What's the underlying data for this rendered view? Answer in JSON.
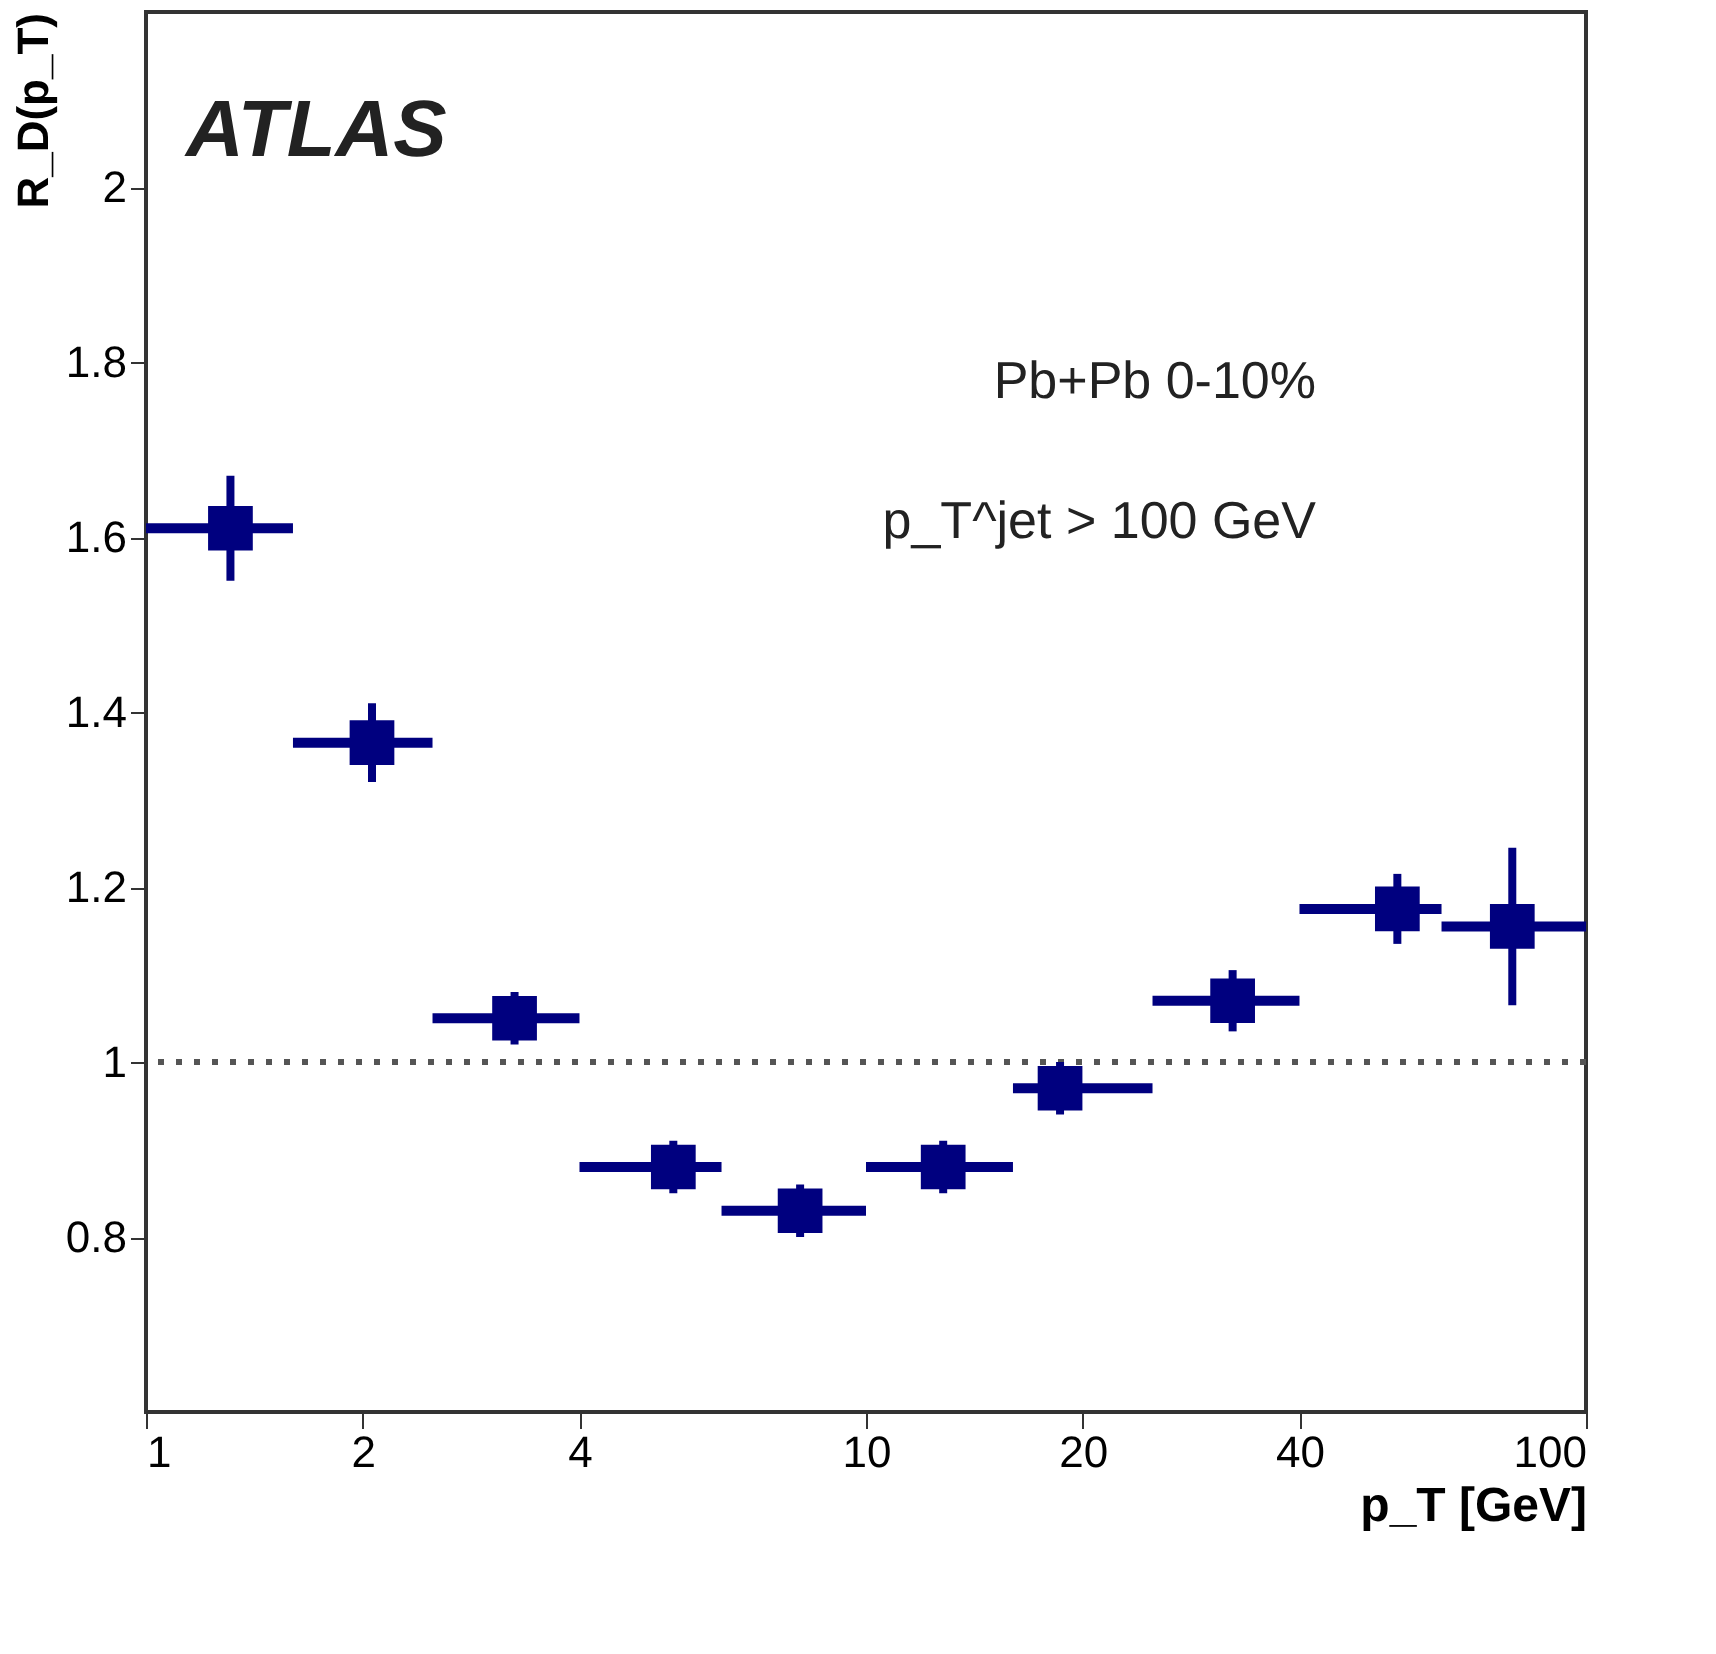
{
  "chart_data": {
    "type": "scatter",
    "ylabel": "R_D(p_T)",
    "xlabel": "p_T [GeV]",
    "annotations": [
      "ATLAS",
      "Pb+Pb 0-10%",
      "p_T^jet > 100 GeV"
    ],
    "x": [
      1.31,
      2.06,
      3.25,
      5.4,
      8.1,
      12.8,
      18.6,
      32.3,
      54.7,
      79
    ],
    "series": [
      {
        "color": "#00007f",
        "values": [
          1.61,
          1.365,
          1.05,
          0.88,
          0.83,
          0.88,
          0.97,
          1.07,
          1.175,
          1.155
        ],
        "xerrors": [
          [
            1,
            1.6
          ],
          [
            1.6,
            2.5
          ],
          [
            2.5,
            4
          ],
          [
            4,
            6.3
          ],
          [
            6.3,
            10
          ],
          [
            10,
            16
          ],
          [
            16,
            25
          ],
          [
            25,
            40
          ],
          [
            40,
            63
          ],
          [
            63,
            100
          ]
        ],
        "errors": [
          0.06,
          0.045,
          0.03,
          0.03,
          0.03,
          0.03,
          0.03,
          0.035,
          0.04,
          0.09
        ]
      }
    ],
    "log": "x",
    "marker": "square",
    "xlim": [
      1,
      100
    ],
    "xticks": [
      1,
      2,
      4,
      10,
      20,
      40,
      100
    ],
    "ylim": [
      0.6,
      2.2
    ],
    "yticks": [
      0.8,
      1,
      1.2,
      1.4,
      1.6,
      1.8,
      2
    ],
    "ref_lines": [
      {
        "axis": "y",
        "value": 1,
        "line_style": "dotted",
        "color": "#555555"
      }
    ],
    "grid": false
  }
}
